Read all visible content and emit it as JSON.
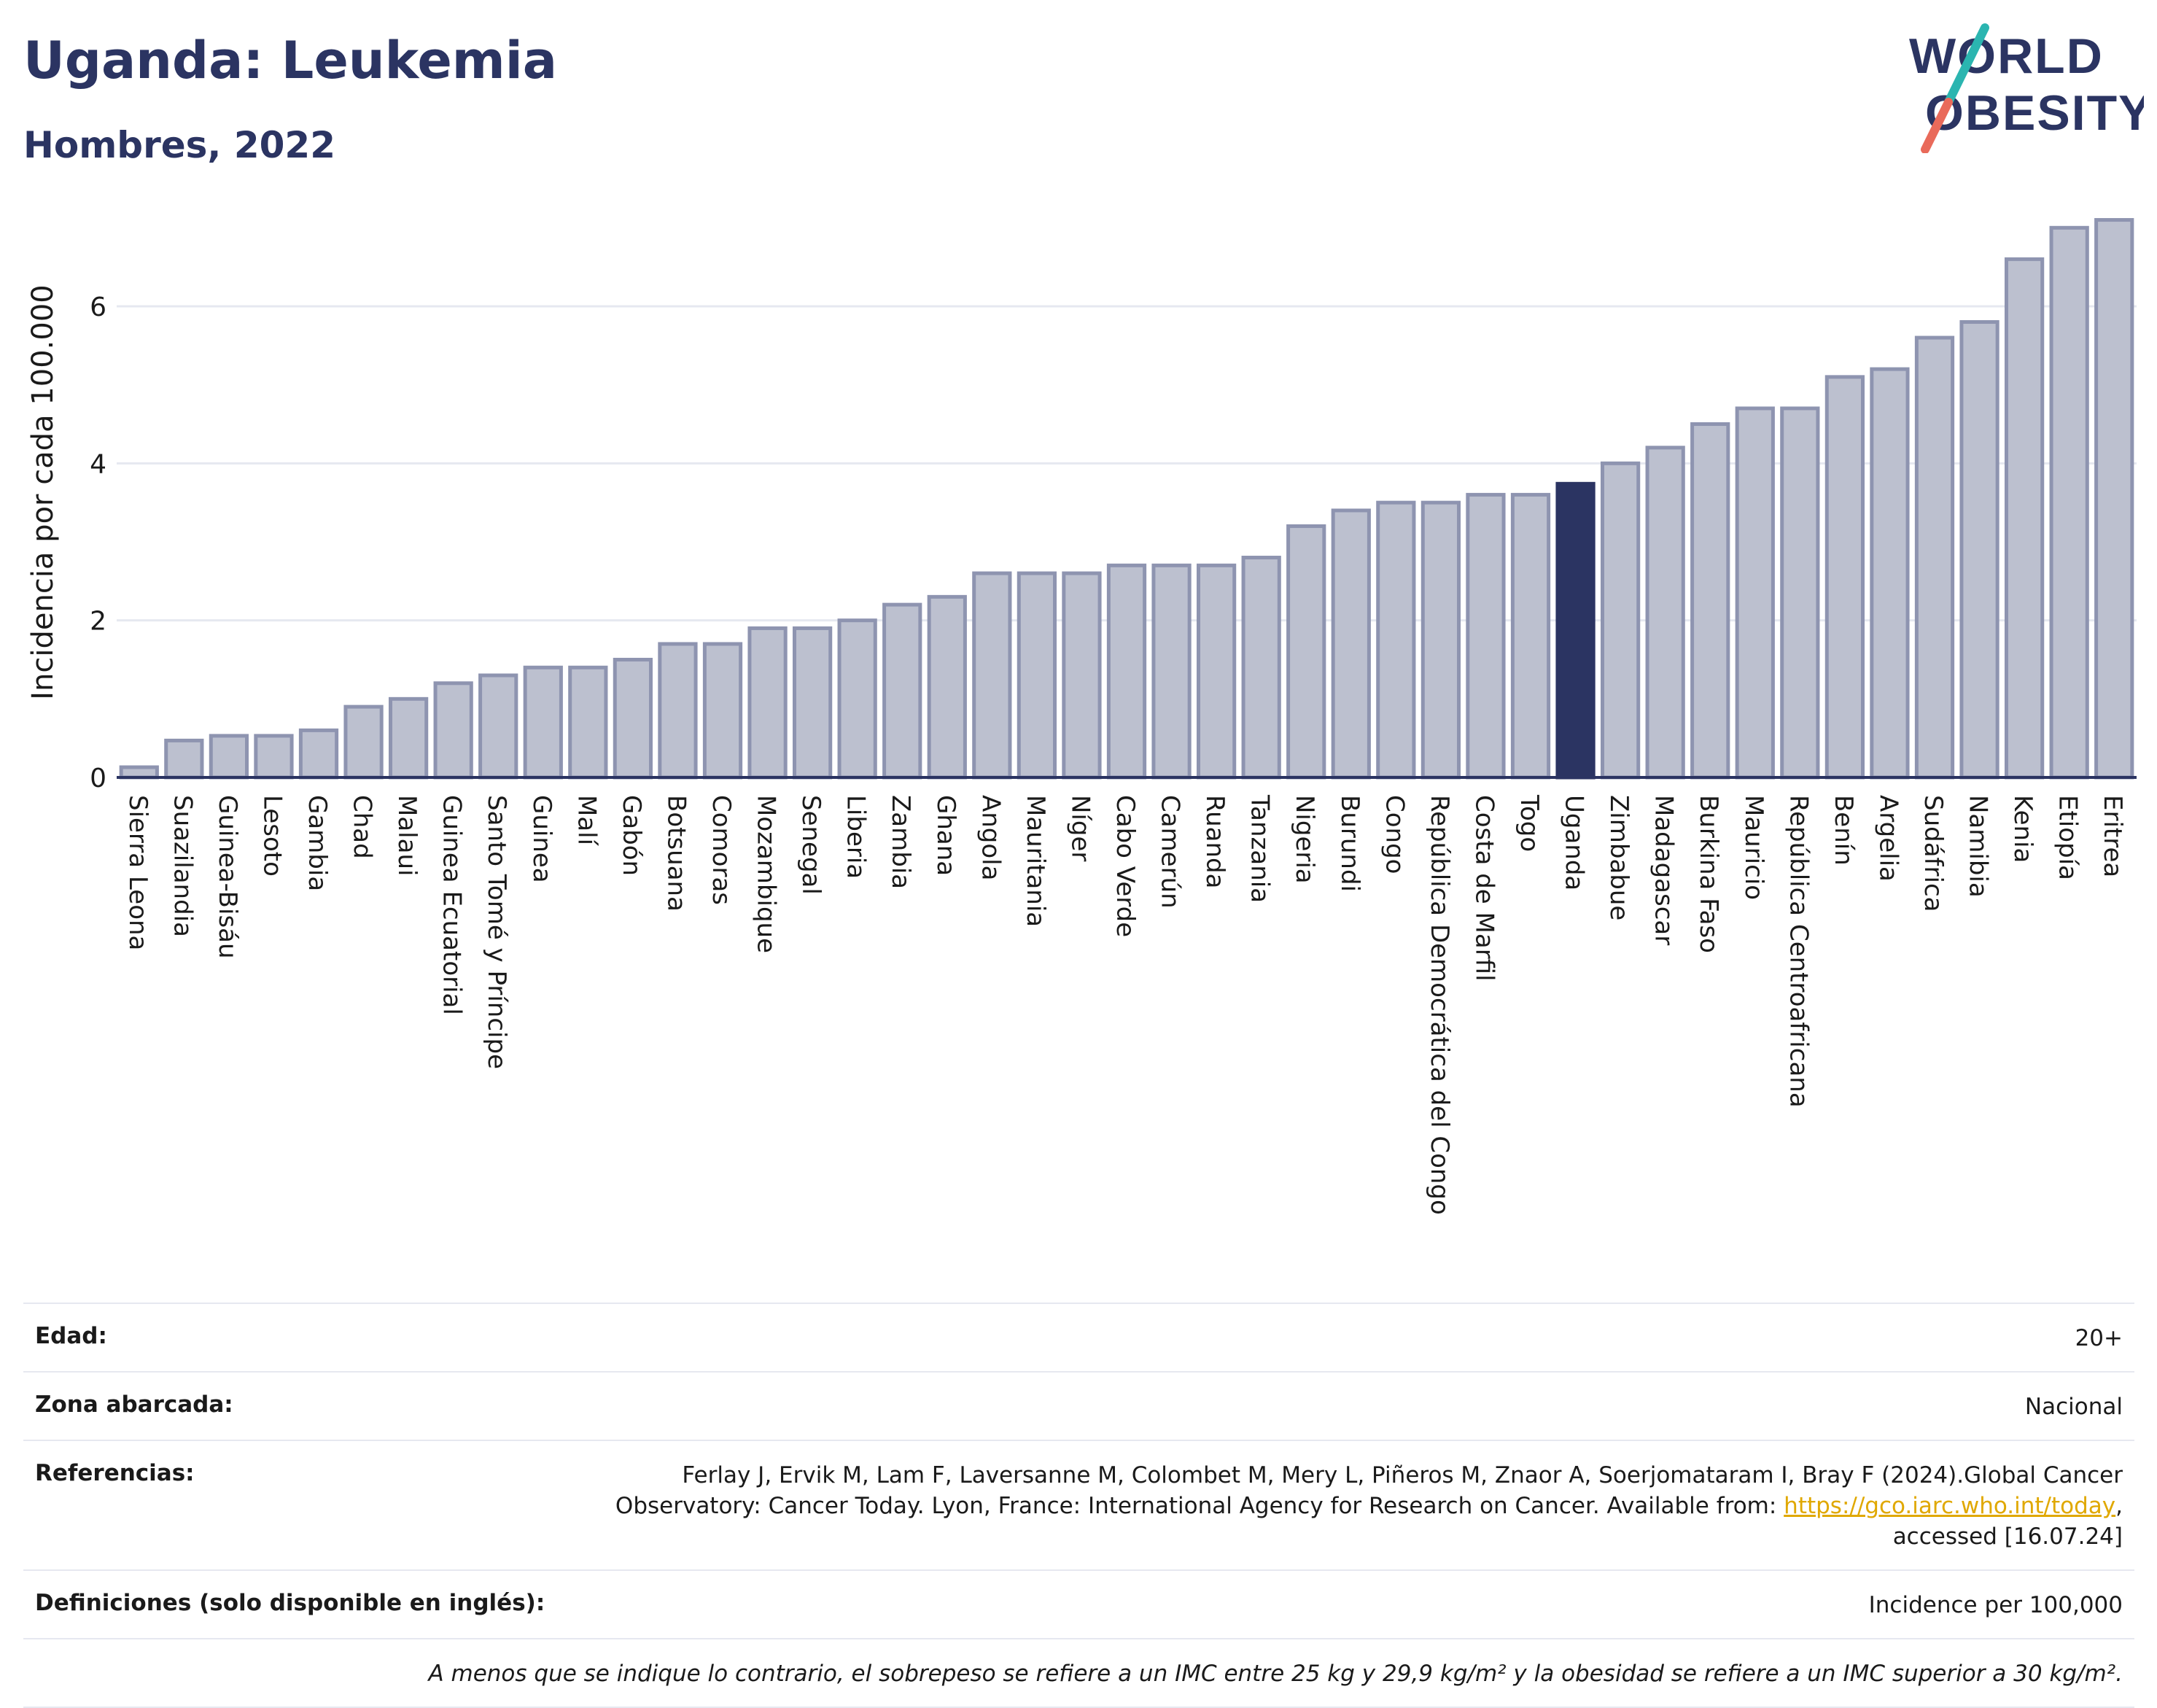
{
  "title": "Uganda: Leukemia",
  "subtitle": "Hombres, 2022",
  "logo": {
    "line1": "WORLD",
    "line2": "OBESITY"
  },
  "colors": {
    "bar": "#bcc0cf",
    "bar_border": "#8e94b0",
    "highlight": "#2b3462",
    "grid": "#e6e8f0"
  },
  "chart_data": {
    "type": "bar",
    "ylabel": "Incidencia por cada 100.000",
    "xlabel": "",
    "ylim": [
      0,
      7.3
    ],
    "yticks": [
      0,
      2,
      4,
      6
    ],
    "highlight": "Uganda",
    "grid": "horizontal",
    "categories": [
      "Sierra Leona",
      "Suazilandia",
      "Guinea-Bisáu",
      "Lesoto",
      "Gambia",
      "Chad",
      "Malaui",
      "Guinea Ecuatorial",
      "Santo Tomé y Príncipe",
      "Guinea",
      "Malí",
      "Gabón",
      "Botsuana",
      "Comoras",
      "Mozambique",
      "Senegal",
      "Liberia",
      "Zambia",
      "Ghana",
      "Angola",
      "Mauritania",
      "Níger",
      "Cabo Verde",
      "Camerún",
      "Ruanda",
      "Tanzania",
      "Nigeria",
      "Burundi",
      "Congo",
      "República Democrática del Congo",
      "Costa de Marfil",
      "Togo",
      "Uganda",
      "Zimbabue",
      "Madagascar",
      "Burkina Faso",
      "Mauricio",
      "República Centroafricana",
      "Benín",
      "Argelia",
      "Sudáfrica",
      "Namibia",
      "Kenia",
      "Etiopía",
      "Eritrea"
    ],
    "values": [
      0.13,
      0.47,
      0.53,
      0.53,
      0.6,
      0.9,
      1.0,
      1.2,
      1.3,
      1.4,
      1.4,
      1.5,
      1.7,
      1.7,
      1.9,
      1.9,
      2.0,
      2.2,
      2.3,
      2.6,
      2.6,
      2.6,
      2.7,
      2.7,
      2.7,
      2.8,
      3.2,
      3.4,
      3.5,
      3.5,
      3.6,
      3.6,
      3.74,
      4.0,
      4.2,
      4.5,
      4.7,
      4.7,
      5.1,
      5.2,
      5.6,
      5.8,
      6.6,
      7.0,
      7.1
    ]
  },
  "info": {
    "edad_label": "Edad:",
    "edad_value": "20+",
    "zona_label": "Zona abarcada:",
    "zona_value": "Nacional",
    "ref_label": "Referencias:",
    "ref_line1": "Ferlay J, Ervik M, Lam F, Laversanne M, Colombet M, Mery L, Piñeros M, Znaor A, Soerjomataram I, Bray F (2024).Global Cancer",
    "ref_line2a": "Observatory: Cancer Today. Lyon, France: International Agency for Research on Cancer. Available from: ",
    "ref_link": "https://gco.iarc.who.int/today",
    "ref_line2b": ",",
    "ref_line3": "accessed [16.07.24]",
    "def_label": "Definiciones (solo disponible en inglés):",
    "def_value": "Incidence per 100,000",
    "note": "A menos que se indique lo contrario, el sobrepeso se refiere a un IMC entre 25 kg y 29,9 kg/m² y la obesidad se refiere a un IMC superior a 30 kg/m²."
  }
}
